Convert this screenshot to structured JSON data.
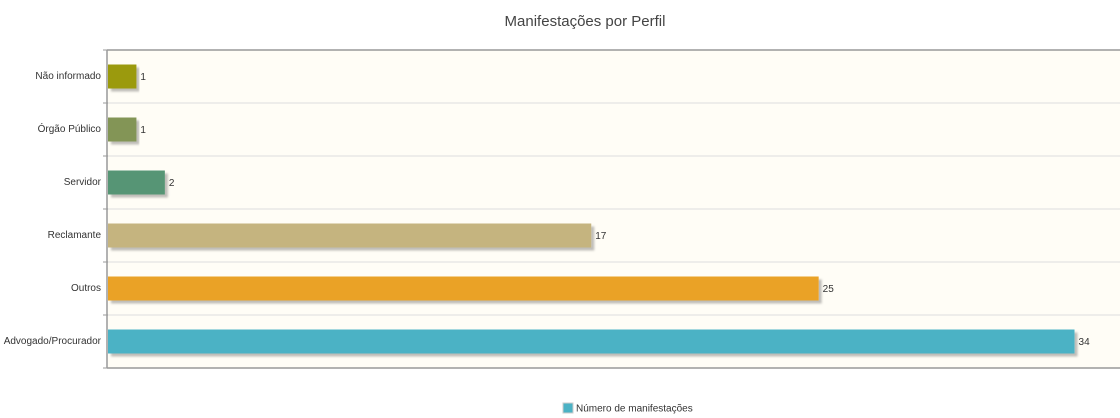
{
  "chart_data": {
    "type": "hbar",
    "title": "Manifestações por Perfil",
    "categories": [
      "Não informado",
      "Órgão Público",
      "Servidor",
      "Reclamante",
      "Outros",
      "Advogado/Procurador"
    ],
    "series": [
      {
        "name": "Número de manifestações",
        "color": "#4bb2c5",
        "values": [
          1,
          1,
          2,
          17,
          25,
          34
        ]
      }
    ],
    "colors": [
      "#9b9a0c",
      "#839557",
      "#579575",
      "#c5b47f",
      "#eaa228",
      "#4bb2c5"
    ],
    "xlim": [
      0,
      35.6
    ],
    "grid": true,
    "legend": "bottom"
  }
}
